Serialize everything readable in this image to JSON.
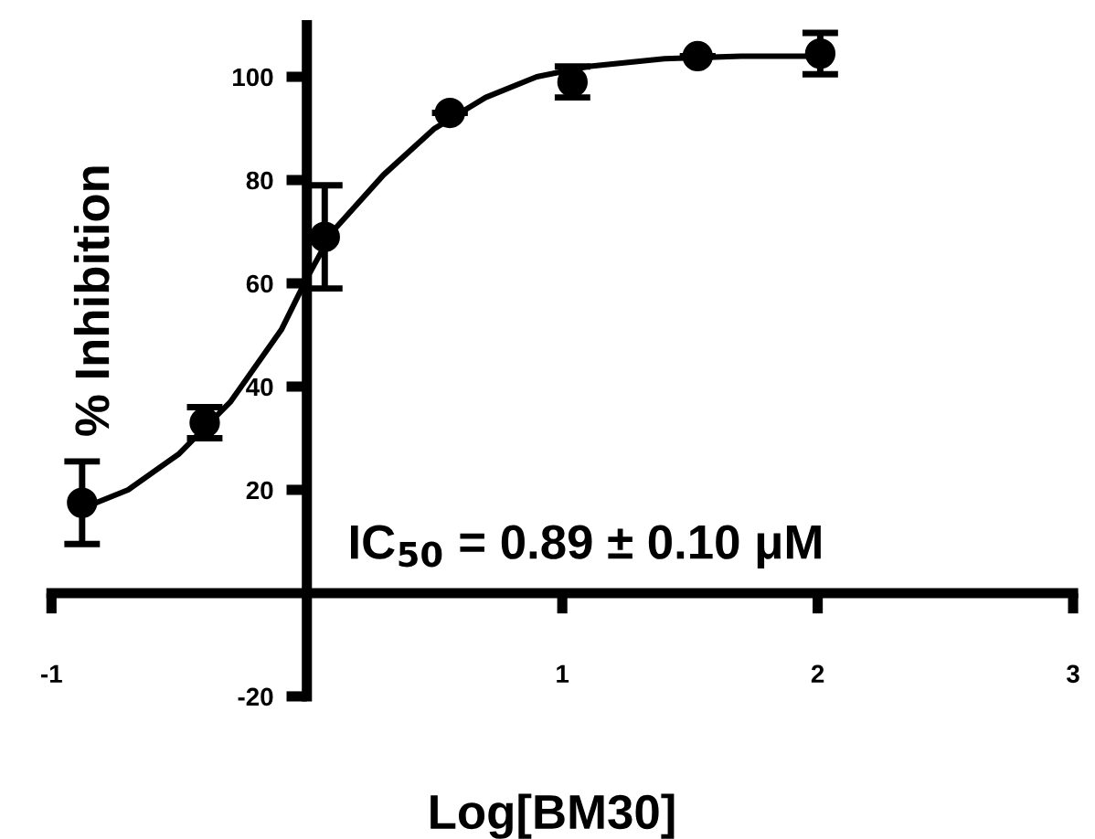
{
  "chart_data": {
    "type": "scatter",
    "xlabel": "Log[BM30]",
    "ylabel": "% Inhibition",
    "xlim": [
      -1,
      3
    ],
    "ylim": [
      -20,
      110
    ],
    "xticks": [
      -1,
      1,
      2,
      3
    ],
    "yticks": [
      -20,
      20,
      40,
      60,
      80,
      100
    ],
    "grid": false,
    "legend": false,
    "marker": "circle",
    "series": [
      {
        "color": "#000000",
        "x": [
          -0.88,
          -0.4,
          0.07,
          0.56,
          1.04,
          1.53,
          2.01
        ],
        "values": [
          17.5,
          33,
          69,
          93,
          99,
          104,
          104.5
        ],
        "errors": [
          8,
          3,
          10,
          null,
          3,
          null,
          4
        ]
      },
      {
        "type": "line",
        "color": "#000000",
        "marker": "none",
        "line_style": "solid",
        "x": [
          -0.9,
          -0.7,
          -0.5,
          -0.3,
          -0.1,
          0,
          0.1,
          0.3,
          0.5,
          0.7,
          0.9,
          1.1,
          1.4,
          1.7,
          2.0
        ],
        "values": [
          16,
          20,
          27,
          37,
          51,
          61,
          70,
          81,
          90,
          96,
          100,
          102,
          103.5,
          104,
          104
        ]
      }
    ],
    "annotations": [
      "IC$_{50}$ = 0.89 ± 0.10 μM"
    ]
  }
}
